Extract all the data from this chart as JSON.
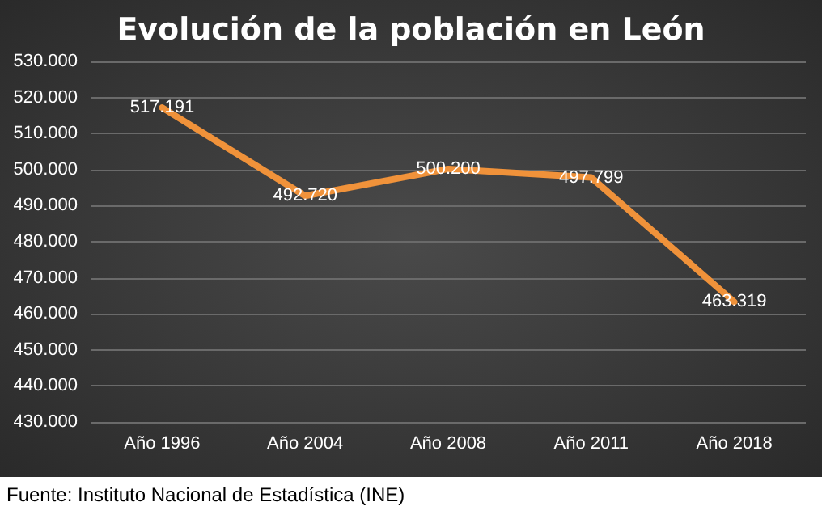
{
  "chart_data": {
    "type": "line",
    "title": "Evolución de la población en León",
    "categories": [
      "Año 1996",
      "Año 2004",
      "Año 2008",
      "Año 2011",
      "Año 2018"
    ],
    "series": [
      {
        "color": "#f0923a",
        "values": [
          517191,
          492720,
          500200,
          497799,
          463319
        ],
        "value_labels": [
          "517.191",
          "492.720",
          "500.200",
          "497.799",
          "463.319"
        ]
      }
    ],
    "ylim": [
      430000,
      530000
    ],
    "yticks": [
      {
        "value": 430000,
        "label": "430.000"
      },
      {
        "value": 440000,
        "label": "440.000"
      },
      {
        "value": 450000,
        "label": "450.000"
      },
      {
        "value": 460000,
        "label": "460.000"
      },
      {
        "value": 470000,
        "label": "470.000"
      },
      {
        "value": 480000,
        "label": "480.000"
      },
      {
        "value": 490000,
        "label": "490.000"
      },
      {
        "value": 500000,
        "label": "500.000"
      },
      {
        "value": 510000,
        "label": "510.000"
      },
      {
        "value": 520000,
        "label": "520.000"
      },
      {
        "value": 530000,
        "label": "530.000"
      }
    ],
    "grid": "y",
    "marker": "none",
    "line_style": "solid",
    "annotations": [
      "Fuente: Instituto Nacional de Estadística (INE)"
    ]
  }
}
